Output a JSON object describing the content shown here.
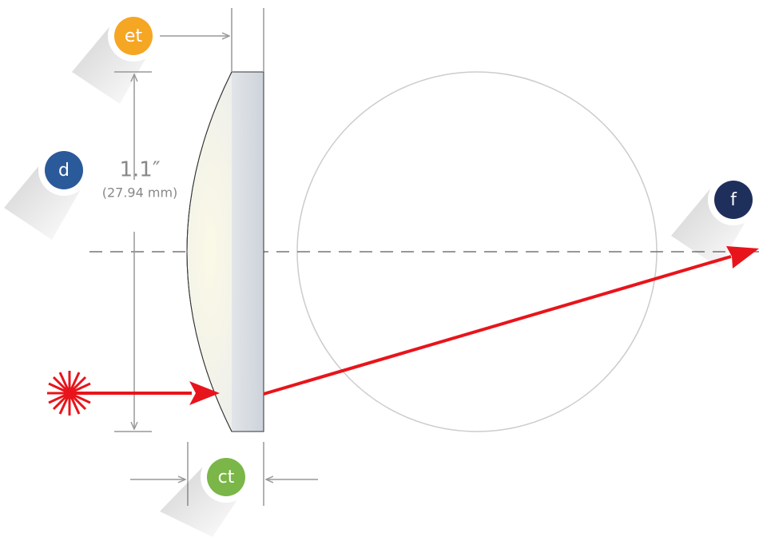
{
  "labels": {
    "et": "et",
    "d": "d",
    "ct": "ct",
    "f": "f"
  },
  "dimension": {
    "value": "1.1″",
    "metric": "(27.94 mm)"
  }
}
